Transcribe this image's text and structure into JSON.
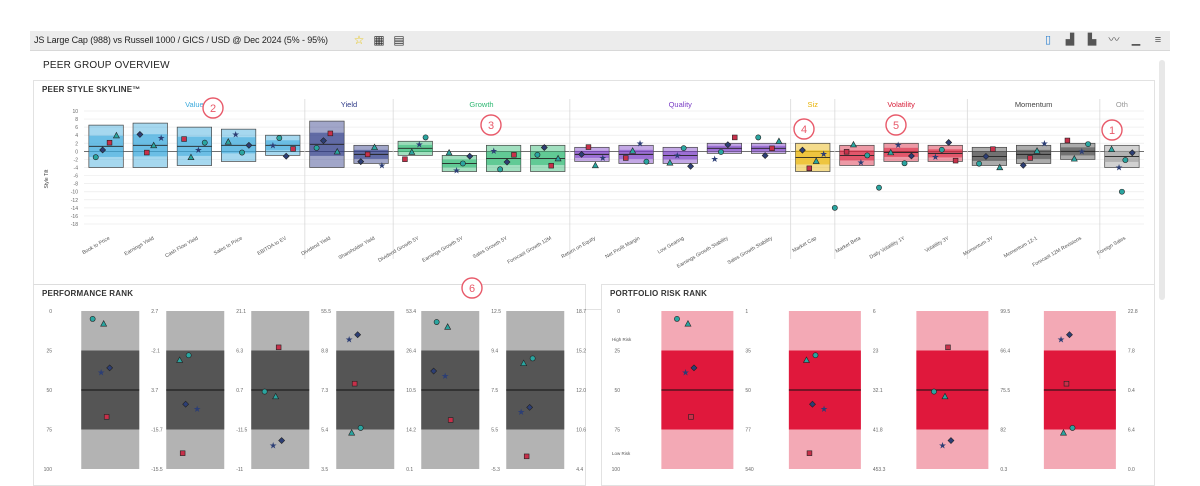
{
  "toolbar": {
    "title": "JS Large Cap (988) vs Russell 1000 / GICS / USD @ Dec 2024 (5% - 95%)",
    "icons": [
      "star-icon",
      "table-icon",
      "document-icon"
    ],
    "view_icons": [
      "page-view-icon",
      "bar-distribution-icon",
      "histogram-icon",
      "line-view-icon",
      "chart-view-icon",
      "menu-icon"
    ]
  },
  "page_title": "PEER GROUP OVERVIEW",
  "skyline": {
    "title": "PEER STYLE SKYLINE™",
    "y_axis_label": "Style Tilt",
    "y_ticks": [
      "10",
      "8",
      "6",
      "4",
      "2",
      "0",
      "-2",
      "-4",
      "-6",
      "-8",
      "-10",
      "-12",
      "-14",
      "-16",
      "-18"
    ],
    "groups": [
      {
        "label": "Value",
        "color": "#3aa9dc"
      },
      {
        "label": "Yield",
        "color": "#2e3a87"
      },
      {
        "label": "Growth",
        "color": "#2eb872"
      },
      {
        "label": "Quality",
        "color": "#7b3fc6"
      },
      {
        "label": "Siz",
        "color": "#e8b200"
      },
      {
        "label": "Volatility",
        "color": "#d8203a"
      },
      {
        "label": "Momentum",
        "color": "#444444"
      },
      {
        "label": "Oth",
        "color": "#999999"
      }
    ],
    "factors": [
      "Book to Price",
      "Earnings Yield",
      "Cash Flow Yield",
      "Sales to Price",
      "EBITDA to EV",
      "Dividend Yield",
      "Shareholder Yield",
      "Dividend Growth 5Y",
      "Earnings Growth 5Y",
      "Sales Growth 5Y",
      "Forecast Growth 12M",
      "Return on Equity",
      "Net Profit Margin",
      "Low Gearing",
      "Earnings Growth Stability",
      "Sales Growth Stability",
      "Market Cap",
      "Market Beta",
      "Daily Volatility 1Y",
      "Volatility 3Y",
      "Momentum 3Y",
      "Momentum 12-1",
      "Forecast 12M Revisions",
      "Foreign Sales"
    ]
  },
  "annotations": [
    "2",
    "3",
    "4",
    "5",
    "1",
    "6"
  ],
  "performance": {
    "title": "PERFORMANCE RANK",
    "rank_ticks": [
      "0",
      "25",
      "50",
      "75",
      "100"
    ],
    "columns": [
      {
        "ticks": [
          "2.7",
          "-2.1",
          "3.7",
          "-15.7",
          "-15.5"
        ]
      },
      {
        "ticks": [
          "21.1",
          "6.3",
          "0.7",
          "-11.5",
          "-11"
        ]
      },
      {
        "ticks": [
          "55.5",
          "8.8",
          "7.3",
          "5.4",
          "3.5"
        ]
      },
      {
        "ticks": [
          "53.4",
          "26.4",
          "10.5",
          "14.2",
          "0.1"
        ]
      },
      {
        "ticks": [
          "12.5",
          "9.4",
          "7.5",
          "5.5",
          "-5.3"
        ]
      },
      {
        "ticks": [
          "18.7",
          "15.2",
          "12.0",
          "10.6",
          "4.4"
        ]
      }
    ]
  },
  "risk": {
    "title": "PORTFOLIO RISK RANK",
    "rank_ticks": [
      "0",
      "25",
      "50",
      "75",
      "100"
    ],
    "high_label": "High Risk",
    "low_label": "Low Risk",
    "columns": [
      {
        "ticks": [
          "1",
          "35",
          "50",
          "77",
          "540"
        ]
      },
      {
        "ticks": [
          "6",
          "23",
          "32.1",
          "41.8",
          "453.3"
        ]
      },
      {
        "ticks": [
          "99.5",
          "66.4",
          "75.5",
          "82",
          "0.3"
        ]
      },
      {
        "ticks": [
          "22.8",
          "7.8",
          "0.4",
          "6.4",
          "0.0"
        ]
      }
    ]
  },
  "colors": {
    "marker_teal": "#2aa5a0",
    "marker_navy": "#2c3e75",
    "marker_red": "#c8304a",
    "annotation": "#e85a6a"
  },
  "chart_data": {
    "type": "bar",
    "title": "PEER STYLE SKYLINE™",
    "ylabel": "Style Tilt",
    "ylim": [
      -18,
      10
    ],
    "categories": [
      "Book to Price",
      "Earnings Yield",
      "Cash Flow Yield",
      "Sales to Price",
      "EBITDA to EV",
      "Dividend Yield",
      "Shareholder Yield",
      "Dividend Growth 5Y",
      "Earnings Growth 5Y",
      "Sales Growth 5Y",
      "Forecast Growth 12M",
      "Return on Equity",
      "Net Profit Margin",
      "Low Gearing",
      "Earnings Growth Stability",
      "Sales Growth Stability",
      "Market Cap",
      "Market Beta",
      "Daily Volatility 1Y",
      "Volatility 3Y",
      "Momentum 3Y",
      "Momentum 12-1",
      "Forecast 12M Revisions",
      "Foreign Sales"
    ],
    "series": [
      {
        "name": "Value",
        "values": [
          [
            6.5,
            -4
          ],
          [
            7,
            -4
          ],
          [
            6,
            -3.5
          ],
          [
            5.5,
            -2.5
          ],
          [
            4,
            -1
          ]
        ]
      },
      {
        "name": "Yield",
        "values": [
          [
            7.5,
            -4
          ],
          [
            1.5,
            -3
          ]
        ]
      },
      {
        "name": "Growth",
        "values": [
          [
            2.5,
            -1
          ],
          [
            -1,
            -5
          ],
          [
            1.5,
            -5
          ],
          [
            1.5,
            -5
          ]
        ]
      },
      {
        "name": "Quality",
        "values": [
          [
            1,
            -2.5
          ],
          [
            1.5,
            -3
          ],
          [
            1,
            -3
          ],
          [
            2,
            -0.5
          ],
          [
            2,
            -0.5
          ]
        ]
      },
      {
        "name": "Siz",
        "values": [
          [
            2,
            -5
          ]
        ]
      },
      {
        "name": "Volatility",
        "values": [
          [
            1.5,
            -3.5
          ],
          [
            2,
            -2.5
          ],
          [
            1.5,
            -2.5
          ]
        ]
      },
      {
        "name": "Momentum",
        "values": [
          [
            1,
            -3.5
          ],
          [
            1.5,
            -3
          ],
          [
            2,
            -2
          ]
        ]
      },
      {
        "name": "Oth",
        "values": [
          [
            1.5,
            -4
          ]
        ]
      }
    ]
  }
}
